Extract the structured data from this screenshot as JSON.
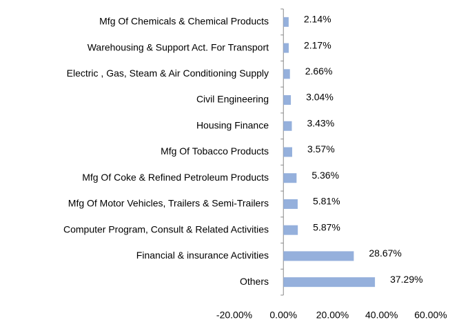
{
  "chart_data": {
    "type": "barh",
    "categories": [
      "Mfg Of Chemicals & Chemical Products",
      "Warehousing & Support Act. For Transport",
      "Electric , Gas, Steam & Air Conditioning Supply",
      "Civil Engineering",
      "Housing Finance",
      "Mfg Of Tobacco Products",
      "Mfg Of Coke & Refined Petroleum Products",
      "Mfg Of Motor Vehicles, Trailers & Semi-Trailers",
      "Computer Program, Consult & Related Activities",
      "Financial & insurance Activities",
      "Others"
    ],
    "values": [
      2.14,
      2.17,
      2.66,
      3.04,
      3.43,
      3.57,
      5.36,
      5.81,
      5.87,
      28.67,
      37.29
    ],
    "value_labels": [
      "2.14%",
      "2.17%",
      "2.66%",
      "3.04%",
      "3.43%",
      "3.57%",
      "5.36%",
      "5.81%",
      "5.87%",
      "28.67%",
      "37.29%"
    ],
    "color": "#95b0dc",
    "xlim": [
      -20,
      60
    ],
    "xticks": [
      {
        "value": -20,
        "label": "-20.00%"
      },
      {
        "value": 0,
        "label": "0.00%"
      },
      {
        "value": 20,
        "label": "20.00%"
      },
      {
        "value": 40,
        "label": "40.00%"
      },
      {
        "value": 60,
        "label": "60.00%"
      }
    ]
  }
}
